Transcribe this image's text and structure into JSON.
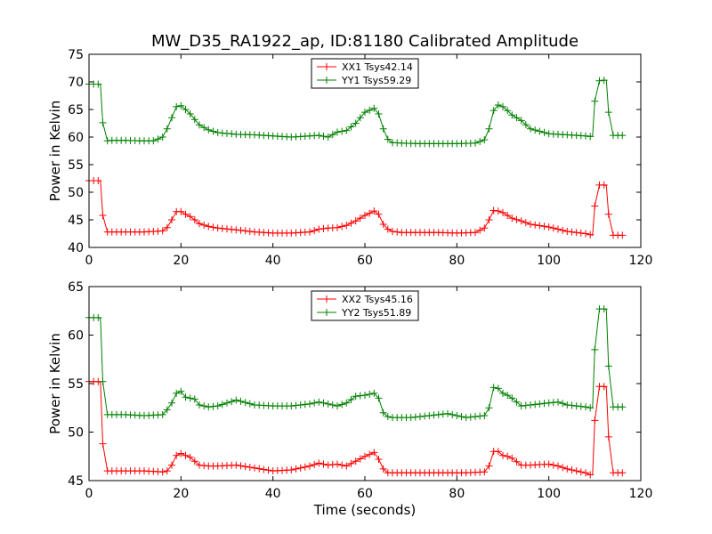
{
  "title": "MW_D35_RA1922_ap, ID:81180 Calibrated Amplitude",
  "colors": {
    "red": "#ff0000",
    "green": "#008000"
  },
  "chart_data": [
    {
      "type": "line",
      "xlabel": "",
      "ylabel": "Power in Kelvin",
      "xlim": [
        0,
        120
      ],
      "ylim": [
        40,
        75
      ],
      "xticks": [
        0,
        20,
        40,
        60,
        80,
        100,
        120
      ],
      "yticks": [
        40,
        45,
        50,
        55,
        60,
        65,
        70,
        75
      ],
      "legend_position": "top-center",
      "grid": false,
      "series": [
        {
          "name": "XX1 Tsys42.14",
          "color": "#ff0000",
          "marker": "+",
          "x": [
            0,
            1,
            2,
            2.5,
            3,
            4,
            5,
            8,
            12,
            16,
            17,
            18,
            19,
            20,
            21,
            22,
            23,
            24,
            26,
            28,
            32,
            36,
            40,
            44,
            48,
            50,
            52,
            54,
            56,
            58,
            60,
            62,
            63,
            64,
            65,
            66,
            68,
            72,
            76,
            80,
            84,
            86,
            87,
            88,
            89,
            90,
            91,
            92,
            94,
            96,
            100,
            102,
            104,
            108,
            109,
            109.5,
            110,
            111,
            112,
            112.5,
            113,
            114,
            116
          ],
          "y": [
            52.1,
            52.1,
            52.1,
            52.0,
            45.8,
            42.8,
            42.8,
            42.8,
            42.8,
            43.0,
            43.6,
            45.0,
            46.5,
            46.5,
            46.0,
            45.6,
            45.0,
            44.3,
            43.8,
            43.5,
            43.2,
            42.8,
            42.6,
            42.6,
            42.8,
            43.3,
            43.5,
            43.6,
            44.0,
            44.8,
            45.8,
            46.6,
            46.0,
            44.2,
            43.3,
            42.9,
            42.7,
            42.7,
            42.7,
            42.6,
            42.7,
            43.5,
            45.0,
            46.7,
            46.6,
            46.3,
            45.8,
            45.3,
            44.8,
            44.2,
            43.7,
            43.3,
            42.9,
            42.5,
            42.3,
            42.2,
            47.5,
            51.3,
            51.3,
            51.2,
            46.0,
            42.2,
            42.2
          ]
        },
        {
          "name": "YY1 Tsys59.29",
          "color": "#008000",
          "marker": "+",
          "x": [
            0,
            1,
            2,
            2.5,
            3,
            4,
            5,
            8,
            12,
            14,
            16,
            17,
            18,
            19,
            20,
            21,
            22,
            23,
            24,
            26,
            28,
            32,
            36,
            40,
            44,
            48,
            50,
            52,
            54,
            56,
            58,
            60,
            62,
            63,
            64,
            65,
            66,
            68,
            72,
            76,
            80,
            84,
            86,
            87,
            88,
            89,
            90,
            91,
            92,
            94,
            96,
            100,
            104,
            108,
            109,
            109.5,
            110,
            111,
            112,
            112.5,
            113,
            114,
            116
          ],
          "y": [
            69.6,
            69.6,
            69.6,
            69.5,
            62.6,
            59.3,
            59.4,
            59.4,
            59.3,
            59.3,
            60.0,
            61.5,
            63.5,
            65.5,
            65.7,
            65.0,
            64.2,
            63.2,
            62.2,
            61.3,
            60.8,
            60.5,
            60.4,
            60.2,
            60.0,
            60.2,
            60.3,
            60.0,
            60.9,
            61.2,
            62.5,
            64.5,
            65.2,
            64.2,
            61.5,
            59.6,
            59.0,
            58.9,
            58.8,
            58.8,
            58.8,
            58.9,
            59.5,
            61.5,
            64.8,
            65.8,
            65.5,
            64.8,
            64.0,
            63.0,
            61.5,
            60.6,
            60.4,
            60.2,
            60.1,
            60.2,
            66.5,
            70.2,
            70.3,
            70.3,
            64.5,
            60.3,
            60.3
          ]
        }
      ]
    },
    {
      "type": "line",
      "xlabel": "Time (seconds)",
      "ylabel": "Power in Kelvin",
      "xlim": [
        0,
        120
      ],
      "ylim": [
        45,
        65
      ],
      "xticks": [
        0,
        20,
        40,
        60,
        80,
        100,
        120
      ],
      "yticks": [
        45,
        50,
        55,
        60,
        65
      ],
      "legend_position": "top-center",
      "grid": false,
      "series": [
        {
          "name": "XX2 Tsys45.16",
          "color": "#ff0000",
          "marker": "+",
          "x": [
            0,
            1,
            2,
            2.5,
            3,
            4,
            5,
            8,
            12,
            16,
            17,
            18,
            19,
            20,
            21,
            22,
            23,
            24,
            26,
            28,
            32,
            36,
            40,
            44,
            48,
            50,
            52,
            54,
            56,
            58,
            60,
            62,
            63,
            64,
            65,
            66,
            70,
            74,
            78,
            82,
            86,
            87,
            88,
            89,
            90,
            91,
            92,
            94,
            96,
            100,
            102,
            104,
            108,
            109,
            109.5,
            110,
            111,
            112,
            112.5,
            113,
            114,
            116
          ],
          "y": [
            55.2,
            55.2,
            55.2,
            55.1,
            48.8,
            46.0,
            46.0,
            46.0,
            46.0,
            45.9,
            46.0,
            46.6,
            47.6,
            47.8,
            47.6,
            47.4,
            47.0,
            46.6,
            46.5,
            46.5,
            46.6,
            46.3,
            46.0,
            46.1,
            46.5,
            46.8,
            46.6,
            46.7,
            46.5,
            47.0,
            47.5,
            47.9,
            47.2,
            46.2,
            45.8,
            45.8,
            45.8,
            45.8,
            45.8,
            45.8,
            45.9,
            46.5,
            48.0,
            48.0,
            47.6,
            47.5,
            47.3,
            46.6,
            46.6,
            46.7,
            46.5,
            46.2,
            45.8,
            45.6,
            45.6,
            51.2,
            54.7,
            54.7,
            54.6,
            49.5,
            45.8,
            45.8
          ]
        },
        {
          "name": "YY2 Tsys51.89",
          "color": "#008000",
          "marker": "+",
          "x": [
            0,
            1,
            2,
            2.5,
            3,
            4,
            5,
            8,
            12,
            16,
            17,
            18,
            19,
            20,
            21,
            22,
            23,
            24,
            26,
            28,
            30,
            32,
            36,
            40,
            44,
            48,
            50,
            52,
            54,
            56,
            58,
            60,
            62,
            63,
            64,
            65,
            66,
            70,
            74,
            78,
            82,
            86,
            87,
            88,
            89,
            90,
            91,
            92,
            94,
            96,
            100,
            102,
            104,
            108,
            109,
            109.5,
            110,
            111,
            112,
            112.5,
            113,
            114,
            116
          ],
          "y": [
            61.8,
            61.8,
            61.8,
            61.7,
            55.2,
            51.8,
            51.8,
            51.8,
            51.7,
            51.8,
            52.3,
            53.0,
            54.0,
            54.2,
            53.6,
            53.5,
            53.4,
            52.8,
            52.6,
            52.7,
            53.0,
            53.3,
            52.8,
            52.7,
            52.7,
            52.9,
            53.1,
            52.9,
            52.7,
            53.0,
            53.7,
            53.8,
            54.0,
            53.5,
            52.0,
            51.6,
            51.5,
            51.5,
            51.7,
            51.9,
            51.5,
            51.7,
            52.5,
            54.6,
            54.5,
            54.0,
            53.8,
            53.5,
            52.7,
            52.8,
            53.0,
            53.1,
            52.8,
            52.6,
            52.5,
            52.5,
            58.5,
            62.7,
            62.7,
            62.6,
            56.8,
            52.6,
            52.6
          ]
        }
      ]
    }
  ]
}
